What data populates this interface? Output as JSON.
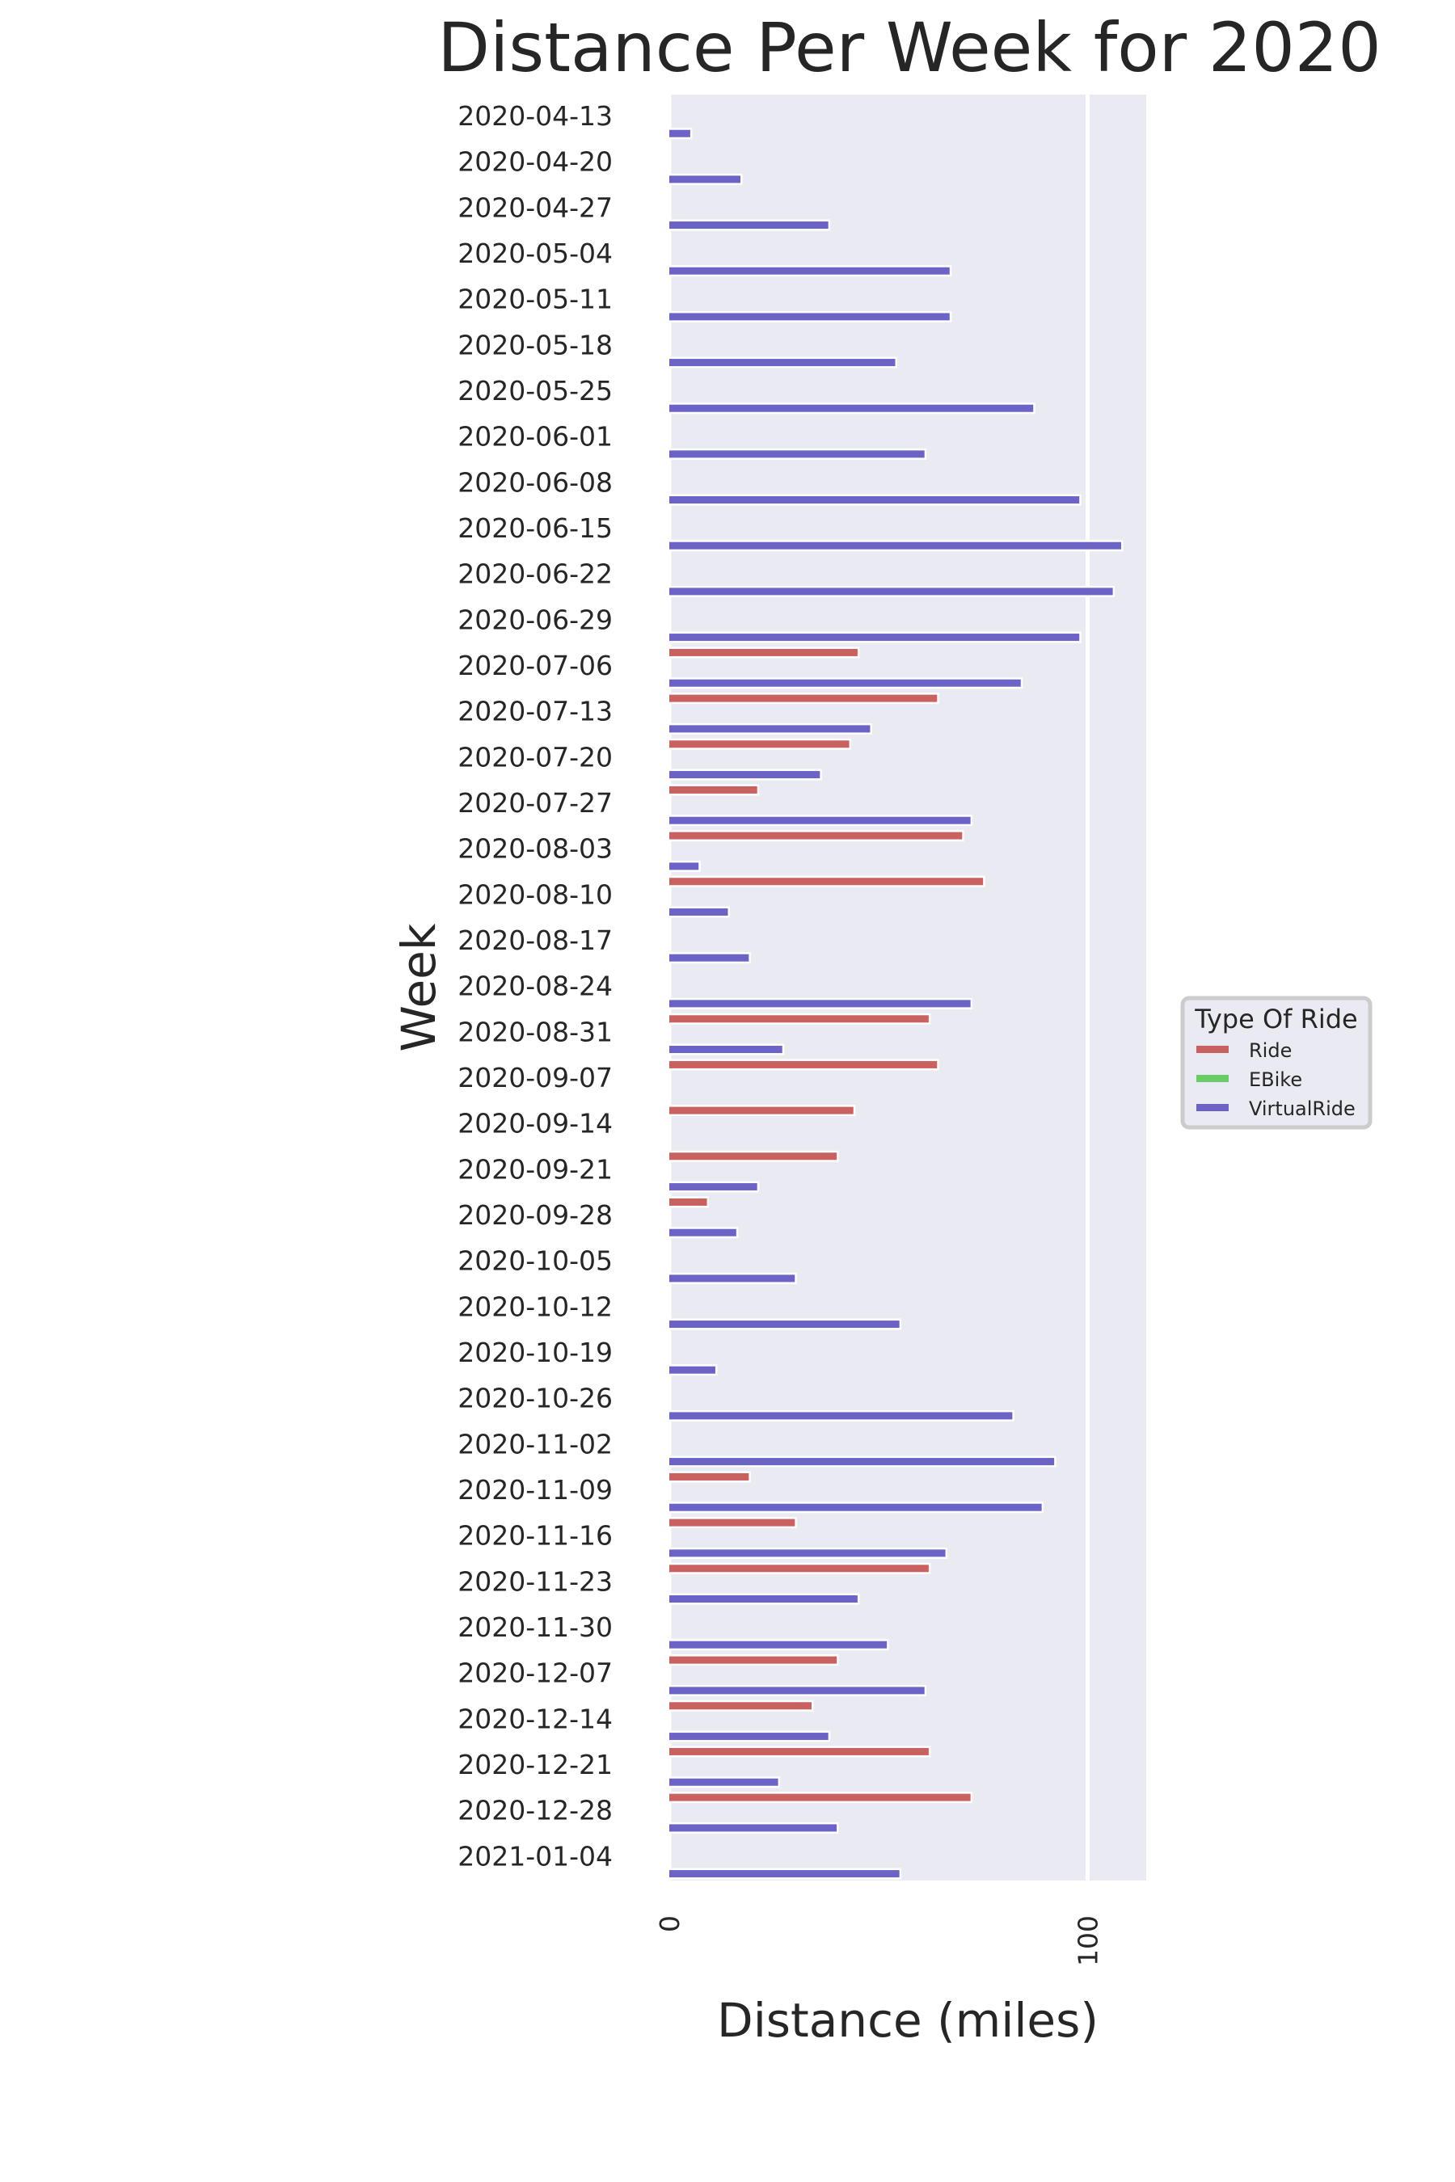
{
  "chart_data": {
    "type": "bar",
    "orientation": "horizontal",
    "title": "Distance Per Week for 2020",
    "xlabel": "Distance (miles)",
    "ylabel": "Week",
    "xlim": [
      0,
      114
    ],
    "xticks": [
      0,
      100
    ],
    "grid": true,
    "legend": {
      "title": "Type Of Ride",
      "placement": "right-center"
    },
    "categories": [
      "2020-04-13",
      "2020-04-20",
      "2020-04-27",
      "2020-05-04",
      "2020-05-11",
      "2020-05-18",
      "2020-05-25",
      "2020-06-01",
      "2020-06-08",
      "2020-06-15",
      "2020-06-22",
      "2020-06-29",
      "2020-07-06",
      "2020-07-13",
      "2020-07-20",
      "2020-07-27",
      "2020-08-03",
      "2020-08-10",
      "2020-08-17",
      "2020-08-24",
      "2020-08-31",
      "2020-09-07",
      "2020-09-14",
      "2020-09-21",
      "2020-09-28",
      "2020-10-05",
      "2020-10-12",
      "2020-10-19",
      "2020-10-26",
      "2020-11-02",
      "2020-11-09",
      "2020-11-16",
      "2020-11-23",
      "2020-11-30",
      "2020-12-07",
      "2020-12-14",
      "2020-12-21",
      "2020-12-28",
      "2021-01-04"
    ],
    "series": [
      {
        "name": "Ride",
        "color": "#c8615f",
        "values": [
          0,
          0,
          0,
          0,
          0,
          0,
          0,
          0,
          0,
          0,
          0,
          0,
          45,
          64,
          43,
          21,
          70,
          75,
          0,
          0,
          62,
          64,
          44,
          40,
          9,
          0,
          0,
          0,
          0,
          0,
          19,
          30,
          62,
          0,
          40,
          34,
          62,
          72,
          0
        ]
      },
      {
        "name": "EBike",
        "color": "#6acc64",
        "values": [
          0,
          0,
          0,
          0,
          0,
          0,
          0,
          0,
          0,
          0,
          0,
          0,
          0,
          0,
          0,
          0,
          0,
          0,
          0,
          0,
          0,
          0,
          0,
          0,
          0,
          0,
          0,
          0,
          0,
          0,
          0,
          0,
          0,
          0,
          0,
          0,
          0,
          0,
          0
        ]
      },
      {
        "name": "VirtualRide",
        "color": "#6b63c6",
        "values": [
          5,
          17,
          38,
          67,
          67,
          54,
          87,
          61,
          98,
          108,
          106,
          98,
          84,
          48,
          36,
          72,
          7,
          14,
          19,
          72,
          27,
          0,
          0,
          21,
          16,
          30,
          55,
          11,
          82,
          92,
          89,
          66,
          45,
          52,
          61,
          38,
          26,
          40,
          55
        ]
      }
    ]
  }
}
